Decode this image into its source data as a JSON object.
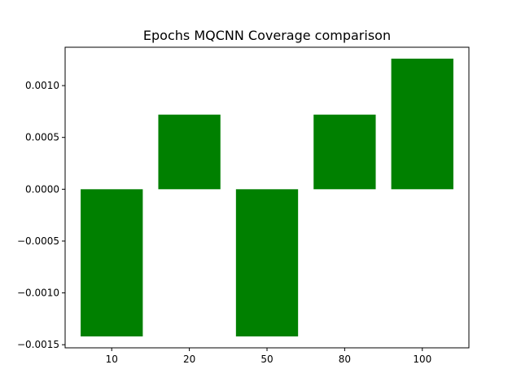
{
  "chart_data": {
    "type": "bar",
    "title": "Epochs MQCNN Coverage comparison",
    "xlabel": "",
    "ylabel": "",
    "categories": [
      "10",
      "20",
      "50",
      "80",
      "100"
    ],
    "values": [
      -0.00142,
      0.00072,
      -0.00142,
      0.00072,
      0.00126
    ],
    "ylim": [
      -0.00153,
      0.00137
    ],
    "yticks": [
      -0.0015,
      -0.001,
      -0.0005,
      0.0,
      0.0005,
      0.001
    ],
    "ytick_labels": [
      "−0.0015",
      "−0.0010",
      "−0.0005",
      "0.0000",
      "0.0005",
      "0.0010"
    ],
    "bar_color": "#008000",
    "grid": false,
    "legend": "none"
  }
}
